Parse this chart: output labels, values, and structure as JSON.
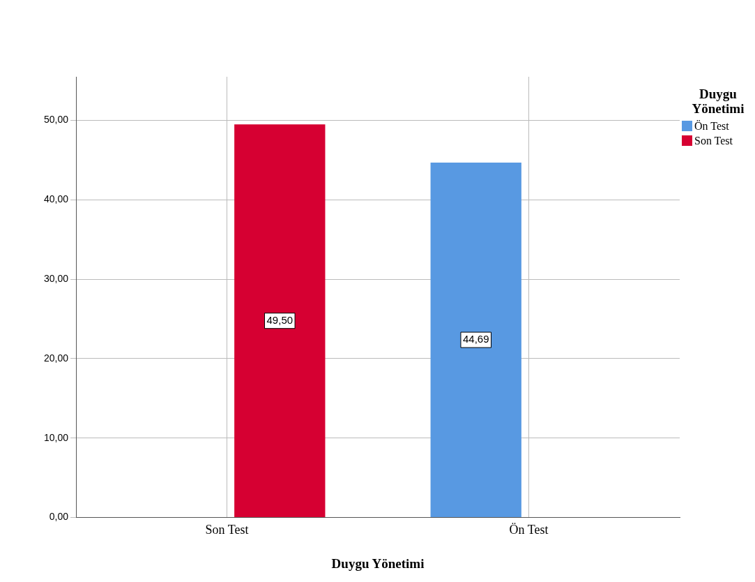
{
  "chart_data": {
    "type": "bar",
    "xlabel": "Duygu Yönetimi",
    "legend_title": "Duygu Yönetimi",
    "categories": [
      "Son Test",
      "Ön Test"
    ],
    "series": [
      {
        "name": "Ön Test",
        "color": "#5899e2",
        "values": [
          null,
          44.69
        ],
        "value_labels": [
          null,
          "44,69"
        ]
      },
      {
        "name": "Son Test",
        "color": "#d60032",
        "values": [
          49.5,
          null
        ],
        "value_labels": [
          "49,50",
          null
        ]
      }
    ],
    "ylim": [
      0,
      55.5
    ],
    "yticks": [
      {
        "value": 0,
        "label": "0,00"
      },
      {
        "value": 10,
        "label": "10,00"
      },
      {
        "value": 20,
        "label": "20,00"
      },
      {
        "value": 30,
        "label": "30,00"
      },
      {
        "value": 40,
        "label": "40,00"
      },
      {
        "value": 50,
        "label": "50,00"
      }
    ],
    "grid": true,
    "legend": "top right"
  }
}
